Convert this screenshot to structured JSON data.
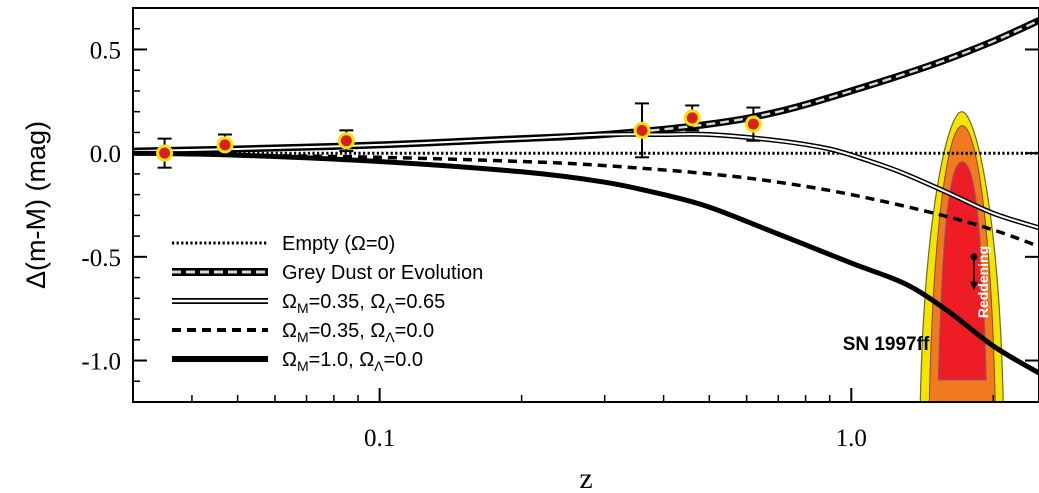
{
  "chart_data": {
    "type": "line",
    "xscale": "log",
    "xlim": [
      0.03,
      2.5
    ],
    "ylim": [
      -1.2,
      0.7
    ],
    "xlabel": "z",
    "ylabel": "Δ(m-M) (mag)",
    "xticks": [
      {
        "value": 0.1,
        "label": "0.1"
      },
      {
        "value": 1.0,
        "label": "1.0"
      }
    ],
    "yticks": [
      {
        "value": 0.5,
        "label": "0.5"
      },
      {
        "value": 0.0,
        "label": "0.0"
      },
      {
        "value": -0.5,
        "label": "-0.5"
      },
      {
        "value": -1.0,
        "label": "-1.0"
      }
    ],
    "legend_position": "lower-left",
    "series": [
      {
        "name": "Empty (Ω=0)",
        "style": "dotted",
        "x": [
          0.03,
          2.5
        ],
        "y": [
          0.0,
          0.0
        ]
      },
      {
        "name": "Grey Dust or Evolution",
        "style": "thick-black-grey-dashed",
        "x": [
          0.03,
          0.05,
          0.1,
          0.2,
          0.3,
          0.5,
          0.7,
          1.0,
          1.5,
          2.0,
          2.5
        ],
        "y": [
          0.01,
          0.02,
          0.04,
          0.07,
          0.09,
          0.14,
          0.2,
          0.3,
          0.43,
          0.54,
          0.64
        ]
      },
      {
        "name": "ΩM=0.35, ΩΛ=0.65",
        "style": "double-line",
        "x": [
          0.03,
          0.05,
          0.1,
          0.2,
          0.3,
          0.4,
          0.5,
          0.7,
          0.9,
          1.1,
          1.3,
          1.6,
          2.0,
          2.5
        ],
        "y": [
          0.01,
          0.02,
          0.04,
          0.07,
          0.09,
          0.09,
          0.09,
          0.06,
          0.02,
          -0.04,
          -0.1,
          -0.19,
          -0.29,
          -0.36
        ]
      },
      {
        "name": "ΩM=0.35, ΩΛ=0.0",
        "style": "dashed",
        "x": [
          0.03,
          0.05,
          0.1,
          0.2,
          0.3,
          0.5,
          0.7,
          1.0,
          1.5,
          2.0,
          2.5
        ],
        "y": [
          0.0,
          -0.01,
          -0.02,
          -0.04,
          -0.06,
          -0.1,
          -0.14,
          -0.2,
          -0.29,
          -0.37,
          -0.45
        ]
      },
      {
        "name": "ΩM=1.0, ΩΛ=0.0",
        "style": "thick-solid",
        "x": [
          0.03,
          0.05,
          0.1,
          0.2,
          0.3,
          0.4,
          0.5,
          0.7,
          1.0,
          1.3,
          1.6,
          2.0,
          2.5
        ],
        "y": [
          0.0,
          -0.01,
          -0.04,
          -0.09,
          -0.14,
          -0.2,
          -0.26,
          -0.39,
          -0.53,
          -0.63,
          -0.76,
          -0.93,
          -1.06
        ]
      }
    ],
    "points": {
      "x": [
        0.035,
        0.047,
        0.085,
        0.36,
        0.46,
        0.62
      ],
      "y": [
        0.0,
        0.04,
        0.06,
        0.11,
        0.17,
        0.14
      ],
      "err": [
        0.07,
        0.05,
        0.05,
        0.13,
        0.06,
        0.08
      ],
      "color": "#d81e1e",
      "ring_color": "#f5e400"
    },
    "annotations": [
      {
        "text": "SN 1997ff",
        "x": 1.0,
        "y": -0.9
      },
      {
        "text": "Reddening",
        "x": 1.8,
        "y": -0.6
      }
    ],
    "sn1997ff_region": {
      "x": [
        1.4,
        2.1
      ],
      "y": [
        -1.2,
        0.2
      ],
      "colors": [
        "#f4e400",
        "#f27a1e",
        "#ee1c24"
      ]
    }
  }
}
